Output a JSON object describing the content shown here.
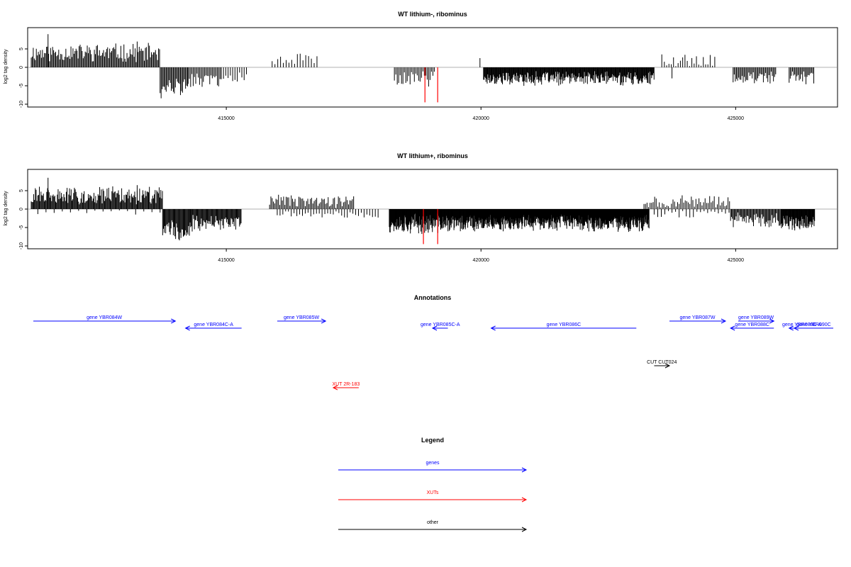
{
  "chart_data": [
    {
      "type": "bar",
      "title": "WT lithium-, ribominus",
      "xlabel": "",
      "ylabel": "log2 tag density",
      "xlim": [
        411100,
        427000
      ],
      "ylim": [
        -10,
        10
      ],
      "yticks": [
        -10,
        -5,
        0,
        5
      ],
      "xticks": [
        415000,
        420000,
        425000
      ],
      "colors": {
        "signal": "#000000",
        "highlight": "#ff0000",
        "axis": "#000000",
        "baseline": "#999999"
      },
      "segments": [
        {
          "from": 411170,
          "to": 413700,
          "step": 20,
          "base": 4.0,
          "amp": 2.2,
          "noise": 1.0,
          "seed": 11
        },
        {
          "from": 413700,
          "to": 414250,
          "step": 20,
          "base": -5.5,
          "amp": 2.5,
          "noise": 1.5,
          "seed": 12
        },
        {
          "from": 414250,
          "to": 414900,
          "step": 25,
          "base": -3.5,
          "amp": 1.8,
          "noise": 1.2,
          "seed": 13
        },
        {
          "from": 414900,
          "to": 415400,
          "step": 45,
          "base": -2.5,
          "amp": 1.5,
          "noise": 1.0,
          "seed": 14
        },
        {
          "from": 415900,
          "to": 416800,
          "step": 55,
          "base": 2.2,
          "amp": 1.3,
          "noise": 1.0,
          "seed": 15
        },
        {
          "from": 418300,
          "to": 419100,
          "step": 28,
          "base": -2.8,
          "amp": 2.2,
          "noise": 1.5,
          "seed": 16
        },
        {
          "from": 420050,
          "to": 423400,
          "step": 12,
          "base": -3.0,
          "amp": 1.5,
          "noise": 1.3,
          "seed": 17
        },
        {
          "from": 423600,
          "to": 424600,
          "step": 45,
          "base": 1.8,
          "amp": 1.5,
          "noise": 1.2,
          "seed": 18
        },
        {
          "from": 424950,
          "to": 425800,
          "step": 22,
          "base": -2.8,
          "amp": 1.5,
          "noise": 1.0,
          "seed": 19
        },
        {
          "from": 426050,
          "to": 426550,
          "step": 22,
          "base": -3.0,
          "amp": 1.5,
          "noise": 1.0,
          "seed": 20
        }
      ],
      "points": [
        {
          "x": 411500,
          "y": 9.0
        },
        {
          "x": 413250,
          "y": 7.0
        },
        {
          "x": 419980,
          "y": 2.5
        },
        {
          "x": 423550,
          "y": 3.5
        },
        {
          "x": 423750,
          "y": -3.0
        }
      ],
      "highlight": [
        {
          "x": 418900,
          "y": -9.5
        },
        {
          "x": 419150,
          "y": -9.5
        }
      ]
    },
    {
      "type": "bar",
      "title": "WT lithium+, ribominus",
      "xlabel": "",
      "ylabel": "log2 tag density",
      "xlim": [
        411100,
        427000
      ],
      "ylim": [
        -10,
        10
      ],
      "yticks": [
        -10,
        -5,
        0,
        5
      ],
      "xticks": [
        415000,
        420000,
        425000
      ],
      "colors": {
        "signal": "#000000",
        "highlight": "#ff0000",
        "axis": "#000000",
        "baseline": "#999999"
      },
      "segments": [
        {
          "from": 411170,
          "to": 413750,
          "step": 16,
          "base": 3.6,
          "amp": 2.2,
          "noise": 1.0,
          "seed": 31
        },
        {
          "from": 411300,
          "to": 413700,
          "step": 160,
          "base": -0.8,
          "amp": 0.6,
          "noise": 0.8,
          "seed": 32
        },
        {
          "from": 413750,
          "to": 414300,
          "step": 15,
          "base": -5.5,
          "amp": 2.5,
          "noise": 1.5,
          "seed": 33
        },
        {
          "from": 414300,
          "to": 415300,
          "step": 15,
          "base": -3.8,
          "amp": 1.8,
          "noise": 1.4,
          "seed": 34
        },
        {
          "from": 415850,
          "to": 417500,
          "step": 25,
          "base": 2.0,
          "amp": 1.5,
          "noise": 1.2,
          "seed": 35
        },
        {
          "from": 416000,
          "to": 418000,
          "step": 55,
          "base": -1.3,
          "amp": 0.8,
          "noise": 0.8,
          "seed": 36
        },
        {
          "from": 418200,
          "to": 419700,
          "step": 9,
          "base": -4.0,
          "amp": 2.2,
          "noise": 1.6,
          "seed": 37
        },
        {
          "from": 419700,
          "to": 423300,
          "step": 8,
          "base": -3.8,
          "amp": 1.8,
          "noise": 1.5,
          "seed": 38
        },
        {
          "from": 423200,
          "to": 424900,
          "step": 30,
          "base": 1.8,
          "amp": 1.6,
          "noise": 1.2,
          "seed": 39
        },
        {
          "from": 423400,
          "to": 424900,
          "step": 70,
          "base": -1.4,
          "amp": 0.8,
          "noise": 0.8,
          "seed": 40
        },
        {
          "from": 424900,
          "to": 425900,
          "step": 18,
          "base": -3.0,
          "amp": 1.6,
          "noise": 1.2,
          "seed": 41
        },
        {
          "from": 425900,
          "to": 426550,
          "step": 10,
          "base": -3.8,
          "amp": 1.8,
          "noise": 1.2,
          "seed": 42
        }
      ],
      "points": [
        {
          "x": 411500,
          "y": 8.5
        },
        {
          "x": 413250,
          "y": 6.5
        }
      ],
      "highlight": [
        {
          "x": 418870,
          "y": -9.5
        },
        {
          "x": 419150,
          "y": -9.5
        }
      ]
    }
  ],
  "annotations": {
    "title": "Annotations",
    "features": [
      {
        "label": "gene YBR084W",
        "start": 411100,
        "end": 414000,
        "strand": "+",
        "kind": "genes",
        "row": 0
      },
      {
        "label": "gene YBR084C-A",
        "start": 414200,
        "end": 415300,
        "strand": "-",
        "kind": "genes",
        "row": 1
      },
      {
        "label": "gene YBR085W",
        "start": 416000,
        "end": 416950,
        "strand": "+",
        "kind": "genes",
        "row": 0
      },
      {
        "label": "gene YBR085C-A",
        "start": 419050,
        "end": 419350,
        "strand": "-",
        "kind": "genes",
        "row": 1
      },
      {
        "label": "gene YBR086C",
        "start": 420200,
        "end": 423050,
        "strand": "-",
        "kind": "genes",
        "row": 1
      },
      {
        "label": "gene YBR087W",
        "start": 423700,
        "end": 424800,
        "strand": "+",
        "kind": "genes",
        "row": 0
      },
      {
        "label": "gene YBR089W",
        "start": 425050,
        "end": 425750,
        "strand": "+",
        "kind": "genes",
        "row": 0
      },
      {
        "label": "gene YBR088C",
        "start": 424900,
        "end": 425750,
        "strand": "-",
        "kind": "genes",
        "row": 1
      },
      {
        "label": "gene YBR089C-A",
        "start": 426050,
        "end": 426550,
        "strand": "-",
        "kind": "genes",
        "row": 1
      },
      {
        "label": "gene YBR090C",
        "start": 426150,
        "end": 427000,
        "strand": "-",
        "kind": "genes",
        "row": 1
      },
      {
        "label": "CUT CUT024",
        "start": 423400,
        "end": 423700,
        "strand": "+",
        "kind": "other",
        "row": 2
      },
      {
        "label": "XUT 2R-183",
        "start": 417100,
        "end": 417600,
        "strand": "-",
        "kind": "XUTs",
        "row": 3
      }
    ]
  },
  "legend": {
    "title": "Legend",
    "items": [
      {
        "label": "genes",
        "color": "#0000ff"
      },
      {
        "label": "XUTs",
        "color": "#ff0000"
      },
      {
        "label": "other",
        "color": "#000000"
      }
    ]
  }
}
